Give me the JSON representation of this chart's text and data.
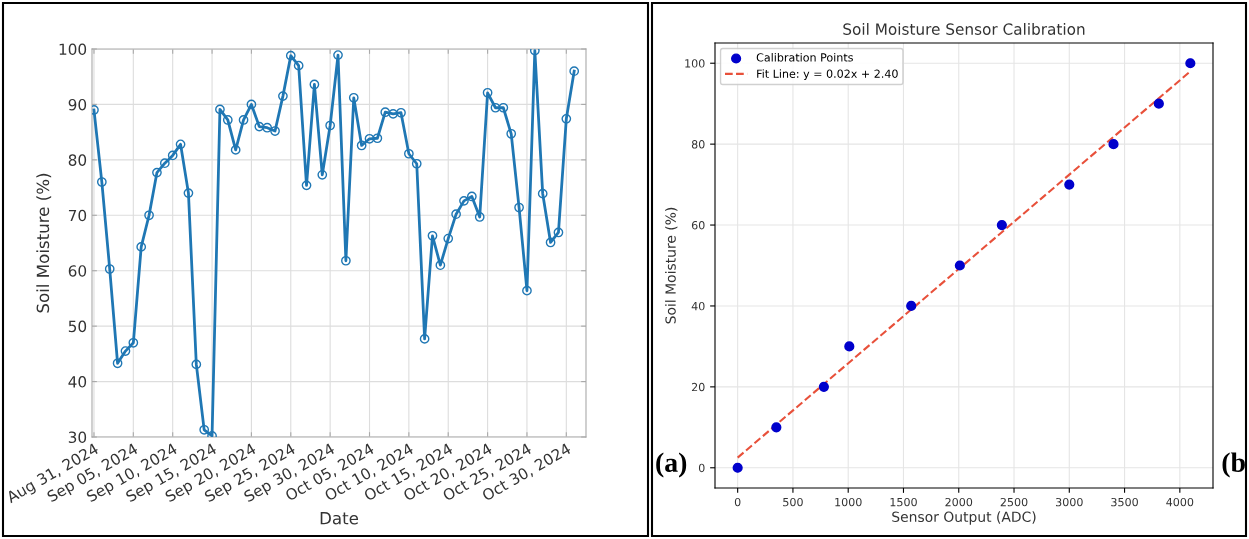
{
  "chart_data": [
    {
      "type": "line",
      "xlabel": "Date",
      "ylabel": "Soil Moisture (%)",
      "grid": true,
      "marker": "circle",
      "line_style": "solid",
      "x": [
        "2024-08-31",
        "2024-09-01",
        "2024-09-02",
        "2024-09-03",
        "2024-09-04",
        "2024-09-05",
        "2024-09-06",
        "2024-09-07",
        "2024-09-08",
        "2024-09-09",
        "2024-09-10",
        "2024-09-11",
        "2024-09-12",
        "2024-09-13",
        "2024-09-14",
        "2024-09-15",
        "2024-09-16",
        "2024-09-17",
        "2024-09-18",
        "2024-09-19",
        "2024-09-20",
        "2024-09-21",
        "2024-09-22",
        "2024-09-23",
        "2024-09-24",
        "2024-09-25",
        "2024-09-26",
        "2024-09-27",
        "2024-09-28",
        "2024-09-29",
        "2024-09-30",
        "2024-10-01",
        "2024-10-02",
        "2024-10-03",
        "2024-10-04",
        "2024-10-05",
        "2024-10-06",
        "2024-10-07",
        "2024-10-08",
        "2024-10-09",
        "2024-10-10",
        "2024-10-11",
        "2024-10-12",
        "2024-10-13",
        "2024-10-14",
        "2024-10-15",
        "2024-10-16",
        "2024-10-17",
        "2024-10-18",
        "2024-10-19",
        "2024-10-20",
        "2024-10-21",
        "2024-10-22",
        "2024-10-23",
        "2024-10-24",
        "2024-10-25",
        "2024-10-26",
        "2024-10-27",
        "2024-10-28",
        "2024-10-29",
        "2024-10-30",
        "2024-10-31"
      ],
      "series": [
        {
          "color": "#1f77b4",
          "values": [
            89,
            76,
            60.3,
            43.3,
            45.5,
            47,
            64.3,
            70,
            77.7,
            79.4,
            80.8,
            82.8,
            74,
            43.1,
            31.3,
            30.2,
            89.1,
            87.2,
            81.8,
            87.2,
            90,
            86,
            85.8,
            85.2,
            91.5,
            98.8,
            97,
            75.4,
            93.6,
            77.3,
            86.2,
            98.9,
            61.8,
            91.2,
            82.6,
            83.8,
            83.9,
            88.6,
            88.3,
            88.5,
            81.1,
            79.3,
            47.7,
            66.3,
            61,
            65.8,
            70.2,
            72.6,
            73.4,
            69.7,
            92.1,
            89.4,
            89.4,
            84.7,
            71.4,
            56.4,
            99.7,
            73.9,
            65.1,
            66.9,
            87.4,
            96
          ]
        }
      ],
      "xlim": [
        "2024-08-30T18:00",
        "2024-11-01T12:00"
      ],
      "xticks": [
        {
          "value": "2024-08-31",
          "label": "Aug 31, 2024"
        },
        {
          "value": "2024-09-05",
          "label": "Sep 05, 2024"
        },
        {
          "value": "2024-09-10",
          "label": "Sep 10, 2024"
        },
        {
          "value": "2024-09-15",
          "label": "Sep 15, 2024"
        },
        {
          "value": "2024-09-20",
          "label": "Sep 20, 2024"
        },
        {
          "value": "2024-09-25",
          "label": "Sep 25, 2024"
        },
        {
          "value": "2024-09-30",
          "label": "Sep 30, 2024"
        },
        {
          "value": "2024-10-05",
          "label": "Oct 05, 2024"
        },
        {
          "value": "2024-10-10",
          "label": "Oct 10, 2024"
        },
        {
          "value": "2024-10-15",
          "label": "Oct 15, 2024"
        },
        {
          "value": "2024-10-20",
          "label": "Oct 20, 2024"
        },
        {
          "value": "2024-10-25",
          "label": "Oct 25, 2024"
        },
        {
          "value": "2024-10-30",
          "label": "Oct 30, 2024"
        }
      ],
      "ylim": [
        30,
        100
      ],
      "yticks": [
        30,
        40,
        50,
        60,
        70,
        80,
        90,
        100
      ]
    },
    {
      "type": "scatter",
      "title": "Soil Moisture Sensor Calibration",
      "xlabel": "Sensor Output (ADC)",
      "ylabel": "Soil Moisture (%)",
      "grid": true,
      "legend": "top left",
      "x": [
        0,
        350,
        780,
        1010,
        1570,
        2010,
        2390,
        3000,
        3400,
        3810,
        4095
      ],
      "series": [
        {
          "name": "Calibration Points",
          "color": "#0000cc",
          "marker": "circle",
          "values": [
            0,
            10,
            20,
            30,
            40,
            50,
            60,
            70,
            80,
            90,
            100
          ]
        },
        {
          "name": "Fit Line: y = 0.02x + 2.40",
          "type": "line",
          "color": "#e8503a",
          "line_style": "dashed",
          "x": [
            0,
            4095
          ],
          "values": [
            2.5,
            98
          ]
        }
      ],
      "xlim": [
        -205,
        4300
      ],
      "xticks": [
        0,
        500,
        1000,
        1500,
        2000,
        2500,
        3000,
        3500,
        4000
      ],
      "ylim": [
        -5,
        105
      ],
      "yticks": [
        0,
        20,
        40,
        60,
        80,
        100
      ],
      "annotations": [
        "(a)",
        "(b"
      ]
    }
  ]
}
